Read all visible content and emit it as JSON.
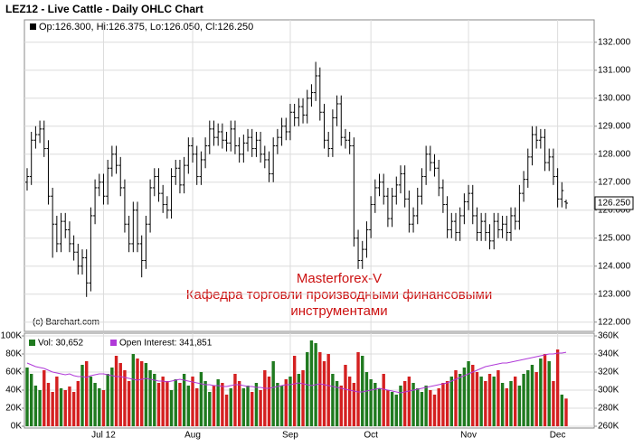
{
  "chart_data": {
    "type": "ohlc",
    "title": "LEZ12 - Live Cattle - Daily OHLC Chart",
    "readout": "Op:126.300, Hi:126.375, Lo:126.050, Cl:126.250",
    "annotation": [
      "Masterforex-V",
      "Кафедра торговли производными финансовыми",
      "инструментами"
    ],
    "credit": "(c) Barchart.com",
    "last_label": "126.250",
    "color": "#000000",
    "grid": true,
    "categories": [
      null,
      null,
      null,
      null,
      null,
      null,
      null,
      null,
      null,
      null,
      null,
      null,
      null,
      null,
      null,
      null,
      null,
      null,
      "Jul 12",
      null,
      null,
      null,
      null,
      null,
      null,
      null,
      null,
      null,
      null,
      null,
      null,
      null,
      null,
      null,
      null,
      null,
      null,
      null,
      null,
      "Aug",
      null,
      null,
      null,
      null,
      null,
      null,
      null,
      null,
      null,
      null,
      null,
      null,
      null,
      null,
      null,
      null,
      null,
      null,
      null,
      null,
      null,
      null,
      "Sep",
      null,
      null,
      null,
      null,
      null,
      null,
      null,
      null,
      null,
      null,
      null,
      null,
      null,
      null,
      null,
      null,
      null,
      null,
      "Oct",
      null,
      null,
      null,
      null,
      null,
      null,
      null,
      null,
      null,
      null,
      null,
      null,
      null,
      null,
      null,
      null,
      null,
      null,
      null,
      null,
      null,
      null,
      "Nov",
      null,
      null,
      null,
      null,
      null,
      null,
      null,
      null,
      null,
      null,
      null,
      null,
      null,
      null,
      null,
      null,
      null,
      null,
      null,
      null,
      "Dec",
      null,
      null
    ],
    "open": [
      127.0,
      127.2,
      128.5,
      128.7,
      128.9,
      128.2,
      126.5,
      125.5,
      124.8,
      125.6,
      125.3,
      124.8,
      124.5,
      124.0,
      124.3,
      123.4,
      125.8,
      126.8,
      127.0,
      126.5,
      127.5,
      128.0,
      127.6,
      126.8,
      125.5,
      124.8,
      126.0,
      124.8,
      124.2,
      125.5,
      126.8,
      127.2,
      126.6,
      126.2,
      126.0,
      127.2,
      127.5,
      126.9,
      127.6,
      128.3,
      128.0,
      127.2,
      127.8,
      128.3,
      128.9,
      128.6,
      128.8,
      128.5,
      128.4,
      128.9,
      128.3,
      128.0,
      128.4,
      128.6,
      128.2,
      128.5,
      128.0,
      127.8,
      127.3,
      128.3,
      128.6,
      129.0,
      128.8,
      129.5,
      129.3,
      129.7,
      129.4,
      130.0,
      130.2,
      130.8,
      129.5,
      128.5,
      128.2,
      129.3,
      129.8,
      128.6,
      128.5,
      128.3,
      125.0,
      124.2,
      124.6,
      125.3,
      126.2,
      126.8,
      127.0,
      126.5,
      125.7,
      126.5,
      126.9,
      127.3,
      126.4,
      125.5,
      125.8,
      126.5,
      127.2,
      128.0,
      127.7,
      127.5,
      126.8,
      126.2,
      125.3,
      125.6,
      125.2,
      125.8,
      126.3,
      126.6,
      125.8,
      125.2,
      125.6,
      125.2,
      124.9,
      125.6,
      125.3,
      125.5,
      125.2,
      125.8,
      125.6,
      126.6,
      127.1,
      127.9,
      128.7,
      128.5,
      128.6,
      127.7,
      127.9,
      127.2,
      126.4,
      126.3
    ],
    "high": [
      127.5,
      128.8,
      129.0,
      129.2,
      129.2,
      128.5,
      126.8,
      125.8,
      125.9,
      125.9,
      125.6,
      125.1,
      124.8,
      124.6,
      124.6,
      126.1,
      127.1,
      127.3,
      127.3,
      127.8,
      128.3,
      128.3,
      127.9,
      127.1,
      125.8,
      126.3,
      126.3,
      125.1,
      125.8,
      127.1,
      127.5,
      127.5,
      126.9,
      126.5,
      127.5,
      127.8,
      127.8,
      127.9,
      128.6,
      128.6,
      128.3,
      128.1,
      128.6,
      129.2,
      129.2,
      129.1,
      129.1,
      128.8,
      129.2,
      129.2,
      128.6,
      128.7,
      128.9,
      128.9,
      128.8,
      128.8,
      128.3,
      128.1,
      128.6,
      128.9,
      129.3,
      129.3,
      129.8,
      129.8,
      130.0,
      130.0,
      130.3,
      130.5,
      131.3,
      131.1,
      129.8,
      128.8,
      129.6,
      130.1,
      130.1,
      128.9,
      128.8,
      128.6,
      125.3,
      124.9,
      125.6,
      126.5,
      127.1,
      127.3,
      127.3,
      126.8,
      126.8,
      127.2,
      127.6,
      127.6,
      126.7,
      126.1,
      126.8,
      127.5,
      128.3,
      128.3,
      128.0,
      127.8,
      127.1,
      126.5,
      125.9,
      125.9,
      126.1,
      126.6,
      126.9,
      126.9,
      126.1,
      125.9,
      125.9,
      125.5,
      125.9,
      125.9,
      125.8,
      125.8,
      126.1,
      126.1,
      126.9,
      127.4,
      128.2,
      129.0,
      129.0,
      128.9,
      128.9,
      128.2,
      128.2,
      127.5,
      127.0,
      126.375
    ],
    "low": [
      126.7,
      126.9,
      128.2,
      128.4,
      127.9,
      126.2,
      124.3,
      124.5,
      124.5,
      125.0,
      124.5,
      124.2,
      123.7,
      123.7,
      122.9,
      123.1,
      125.5,
      126.5,
      126.2,
      126.2,
      127.2,
      127.3,
      126.5,
      125.2,
      124.5,
      124.5,
      124.5,
      123.6,
      123.9,
      125.2,
      126.5,
      126.3,
      125.9,
      125.7,
      125.7,
      126.9,
      126.6,
      126.6,
      127.3,
      127.7,
      126.9,
      126.9,
      127.5,
      128.0,
      128.3,
      128.3,
      128.2,
      128.1,
      128.1,
      128.0,
      127.7,
      127.7,
      128.1,
      127.9,
      127.9,
      127.7,
      127.5,
      127.0,
      127.0,
      128.0,
      128.3,
      128.5,
      128.5,
      129.0,
      129.0,
      129.1,
      129.1,
      129.7,
      129.9,
      129.2,
      128.2,
      127.9,
      127.9,
      129.0,
      128.3,
      128.2,
      128.0,
      124.7,
      123.9,
      123.9,
      124.3,
      125.0,
      125.9,
      126.5,
      126.2,
      125.4,
      125.4,
      126.2,
      126.6,
      126.1,
      125.2,
      125.2,
      125.5,
      126.2,
      126.9,
      127.4,
      127.2,
      126.5,
      125.9,
      125.0,
      125.0,
      124.9,
      124.9,
      125.5,
      126.0,
      125.5,
      124.9,
      124.9,
      124.9,
      124.6,
      124.6,
      125.0,
      125.0,
      124.9,
      124.9,
      125.3,
      125.3,
      126.3,
      126.8,
      127.6,
      128.2,
      128.2,
      127.4,
      127.4,
      126.9,
      126.1,
      126.1,
      126.05
    ],
    "close": [
      127.2,
      128.5,
      128.7,
      128.9,
      128.2,
      126.5,
      125.5,
      124.8,
      125.6,
      125.3,
      124.8,
      124.5,
      124.0,
      124.3,
      123.4,
      125.8,
      126.8,
      127.0,
      126.5,
      127.5,
      128.0,
      127.6,
      126.8,
      125.5,
      124.8,
      126.0,
      124.8,
      124.2,
      125.5,
      126.8,
      127.2,
      126.6,
      126.2,
      126.0,
      127.2,
      127.5,
      126.9,
      127.6,
      128.3,
      128.0,
      127.2,
      127.8,
      128.3,
      128.9,
      128.6,
      128.8,
      128.5,
      128.4,
      128.9,
      128.3,
      128.0,
      128.4,
      128.6,
      128.2,
      128.5,
      128.0,
      127.8,
      127.3,
      128.3,
      128.6,
      129.0,
      128.8,
      129.5,
      129.3,
      129.7,
      129.4,
      130.0,
      130.2,
      130.8,
      129.5,
      128.5,
      128.2,
      129.3,
      129.8,
      128.6,
      128.5,
      128.3,
      125.0,
      124.2,
      124.6,
      125.3,
      126.2,
      126.8,
      127.0,
      126.5,
      125.7,
      126.5,
      126.9,
      127.3,
      126.4,
      125.5,
      125.8,
      126.5,
      127.2,
      128.0,
      127.7,
      127.5,
      126.8,
      126.2,
      125.3,
      125.6,
      125.2,
      125.8,
      126.3,
      126.6,
      125.8,
      125.2,
      125.6,
      125.2,
      124.9,
      125.6,
      125.3,
      125.5,
      125.2,
      125.8,
      125.6,
      126.6,
      127.1,
      127.9,
      128.7,
      128.5,
      128.6,
      127.7,
      127.9,
      127.2,
      126.4,
      126.7,
      126.25
    ],
    "ylim": [
      121.7,
      132.8
    ],
    "yticks": [
      {
        "value": 122,
        "label": "122.000"
      },
      {
        "value": 123,
        "label": "123.000"
      },
      {
        "value": 124,
        "label": "124.000"
      },
      {
        "value": 125,
        "label": "125.000"
      },
      {
        "value": 126,
        "label": "126.000"
      },
      {
        "value": 127,
        "label": "127.000"
      },
      {
        "value": 128,
        "label": "128.000"
      },
      {
        "value": 129,
        "label": "129.000"
      },
      {
        "value": 130,
        "label": "130.000"
      },
      {
        "value": 131,
        "label": "131.000"
      },
      {
        "value": 132,
        "label": "132.000"
      }
    ],
    "lower": {
      "type": "bar",
      "series": [
        {
          "name": "Vol: 30,652",
          "color": "#1f7a1f",
          "down_color": "#d42020",
          "values": [
            65000,
            58000,
            45000,
            40000,
            62000,
            48000,
            38000,
            55000,
            42000,
            40000,
            44000,
            38000,
            50000,
            68000,
            72000,
            55000,
            48000,
            42000,
            40000,
            58000,
            65000,
            78000,
            70000,
            62000,
            50000,
            80000,
            75000,
            72000,
            70000,
            62000,
            58000,
            48000,
            55000,
            50000,
            40000,
            52000,
            48000,
            58000,
            45000,
            55000,
            42000,
            60000,
            50000,
            38000,
            45000,
            52000,
            48000,
            35000,
            42000,
            58000,
            50000,
            42000,
            45000,
            38000,
            48000,
            40000,
            62000,
            55000,
            72000,
            48000,
            45000,
            52000,
            55000,
            78000,
            58000,
            62000,
            82000,
            95000,
            92000,
            82000,
            72000,
            80000,
            58000,
            50000,
            45000,
            68000,
            55000,
            48000,
            82000,
            78000,
            60000,
            52000,
            48000,
            42000,
            58000,
            40000,
            38000,
            35000,
            45000,
            50000,
            55000,
            48000,
            42000,
            38000,
            45000,
            40000,
            35000,
            42000,
            48000,
            50000,
            55000,
            62000,
            58000,
            65000,
            72000,
            68000,
            60000,
            55000,
            50000,
            58000,
            55000,
            62000,
            48000,
            42000,
            50000,
            55000,
            45000,
            58000,
            62000,
            68000,
            60000,
            75000,
            80000,
            72000,
            50000,
            85000,
            35000,
            30652
          ]
        },
        {
          "name": "Open Interest: 341,851",
          "color": "#b03ad8",
          "type": "line",
          "axis": "y2",
          "values": [
            330000,
            328000,
            326000,
            325000,
            324000,
            322000,
            320000,
            319000,
            318000,
            317000,
            318000,
            316000,
            315000,
            315000,
            314000,
            316000,
            317000,
            318000,
            318000,
            317000,
            316000,
            315000,
            315000,
            314000,
            313000,
            312000,
            311000,
            312000,
            313000,
            312000,
            311000,
            310000,
            310000,
            309000,
            310000,
            311000,
            312000,
            311000,
            310000,
            309000,
            308000,
            307000,
            306000,
            306000,
            305000,
            305000,
            304000,
            304000,
            305000,
            306000,
            306000,
            305000,
            304000,
            304000,
            303000,
            303000,
            302000,
            302000,
            303000,
            304000,
            305000,
            306000,
            306000,
            307000,
            308000,
            307000,
            306000,
            305000,
            306000,
            307000,
            306000,
            305000,
            304000,
            303000,
            302000,
            301000,
            300000,
            299000,
            298000,
            298000,
            299000,
            300000,
            301000,
            302000,
            301000,
            300000,
            299000,
            298000,
            297000,
            298000,
            299000,
            300000,
            301000,
            302000,
            303000,
            304000,
            305000,
            306000,
            307000,
            308000,
            310000,
            312000,
            314000,
            316000,
            318000,
            320000,
            322000,
            324000,
            326000,
            327000,
            328000,
            329000,
            330000,
            330000,
            331000,
            332000,
            333000,
            334000,
            335000,
            336000,
            337000,
            338000,
            339000,
            340000,
            340000,
            341000,
            341000,
            341851
          ]
        }
      ],
      "ylim": [
        0,
        100000
      ],
      "yticks": [
        {
          "value": 0,
          "label": "0K"
        },
        {
          "value": 20000,
          "label": "20K"
        },
        {
          "value": 40000,
          "label": "40K"
        },
        {
          "value": 60000,
          "label": "60K"
        },
        {
          "value": 80000,
          "label": "80K"
        },
        {
          "value": 100000,
          "label": "100K"
        }
      ],
      "y2lim": [
        260000,
        360000
      ],
      "y2ticks": [
        {
          "value": 260000,
          "label": "260K"
        },
        {
          "value": 280000,
          "label": "280K"
        },
        {
          "value": 300000,
          "label": "300K"
        },
        {
          "value": 320000,
          "label": "320K"
        },
        {
          "value": 340000,
          "label": "340K"
        },
        {
          "value": 360000,
          "label": "360K"
        }
      ]
    }
  }
}
